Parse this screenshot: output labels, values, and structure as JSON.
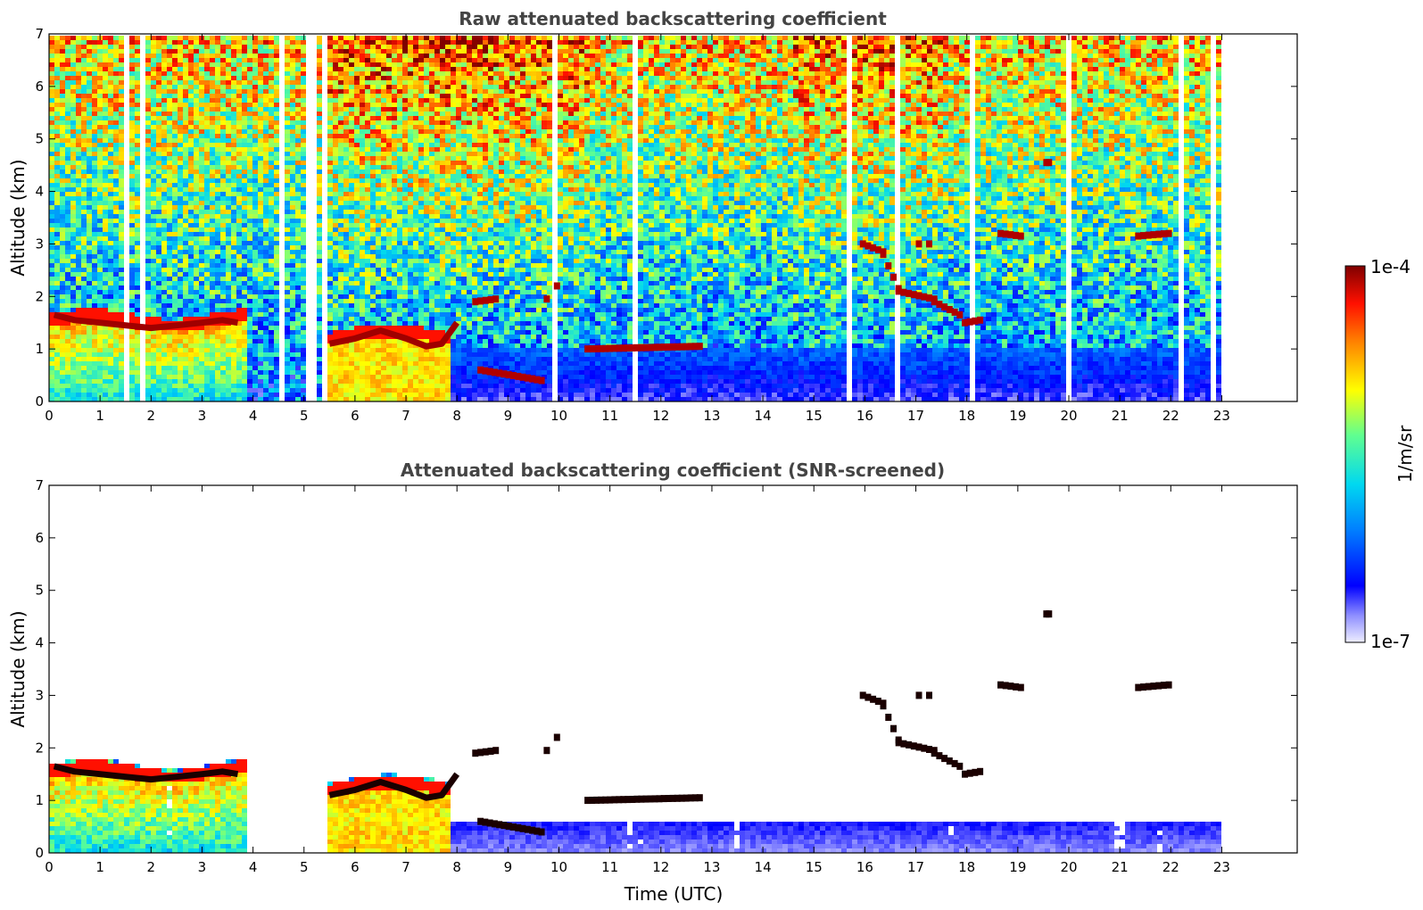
{
  "chart_data": [
    {
      "type": "heatmap",
      "title": "Raw attenuated backscattering coefficient",
      "xlabel": "",
      "ylabel": "Altitude (km)",
      "xlim": [
        0,
        24
      ],
      "ylim": [
        0,
        7
      ],
      "x_ticks": [
        "0",
        "1",
        "2",
        "3",
        "4",
        "5",
        "6",
        "7",
        "8",
        "9",
        "10",
        "11",
        "12",
        "13",
        "14",
        "15",
        "16",
        "17",
        "18",
        "19",
        "20",
        "21",
        "22",
        "23"
      ],
      "y_ticks": [
        "0",
        "1",
        "2",
        "3",
        "4",
        "5",
        "6",
        "7"
      ],
      "data_end_time": 23,
      "features": [
        {
          "name": "boundary layer top",
          "x": [
            0.1,
            0.5,
            1.0,
            1.5,
            2.0,
            2.5,
            3.0,
            3.4,
            3.7
          ],
          "y": [
            1.65,
            1.55,
            1.5,
            1.45,
            1.4,
            1.45,
            1.5,
            1.55,
            1.5
          ]
        },
        {
          "name": "morning aerosol layer top",
          "x": [
            5.5,
            6.0,
            6.5,
            7.0,
            7.4,
            7.7,
            8.0
          ],
          "y": [
            1.1,
            1.2,
            1.35,
            1.2,
            1.05,
            1.1,
            1.5
          ]
        },
        {
          "name": "afternoon cloud layer",
          "x": [
            16.0,
            16.3,
            16.6,
            17.0,
            17.3,
            17.6,
            18.0
          ],
          "y": [
            3.0,
            2.8,
            2.1,
            2.0,
            1.9,
            1.7,
            1.5
          ]
        },
        {
          "name": "evening cloud",
          "x": [
            21.3,
            21.6,
            21.9
          ],
          "y": [
            3.15,
            3.2,
            3.2
          ]
        }
      ]
    },
    {
      "type": "heatmap",
      "title": "Attenuated backscattering coefficient (SNR-screened)",
      "xlabel": "Time (UTC)",
      "ylabel": "Altitude (km)",
      "xlim": [
        0,
        24
      ],
      "ylim": [
        0,
        7
      ],
      "x_ticks": [
        "0",
        "1",
        "2",
        "3",
        "4",
        "5",
        "6",
        "7",
        "8",
        "9",
        "10",
        "11",
        "12",
        "13",
        "14",
        "15",
        "16",
        "17",
        "18",
        "19",
        "20",
        "21",
        "22",
        "23"
      ],
      "y_ticks": [
        "0",
        "1",
        "2",
        "3",
        "4",
        "5",
        "6",
        "7"
      ],
      "data_end_time": 23
    }
  ],
  "colorbar": {
    "label": "1/m/sr",
    "max_label": "1e-4",
    "min_label": "1e-7",
    "colormap": [
      "#e8e8ff",
      "#b0b0ff",
      "#6060ff",
      "#0000ff",
      "#0060ff",
      "#00b0ff",
      "#00e0e0",
      "#40ff90",
      "#c0ff30",
      "#ffff00",
      "#ffc000",
      "#ff7000",
      "#ff2000",
      "#c00000",
      "#800000"
    ]
  }
}
